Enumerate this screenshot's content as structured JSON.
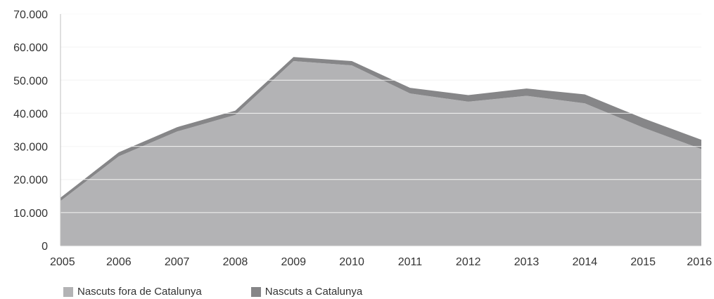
{
  "chart_data": {
    "type": "area",
    "stacked": true,
    "title": "",
    "xlabel": "",
    "ylabel": "",
    "x": [
      "2005",
      "2006",
      "2007",
      "2008",
      "2009",
      "2010",
      "2011",
      "2012",
      "2013",
      "2014",
      "2015",
      "2016"
    ],
    "ylim": [
      0,
      70000
    ],
    "yticks": [
      0,
      10000,
      20000,
      30000,
      40000,
      50000,
      60000,
      70000
    ],
    "ytick_labels": [
      "0",
      "10.000",
      "20.000",
      "30.000",
      "40.000",
      "50.000",
      "60.000",
      "70.000"
    ],
    "grid": true,
    "legend_position": "bottom-left",
    "series": [
      {
        "name": "Nascuts fora de Catalunya",
        "color": "#b3b3b5",
        "values": [
          13500,
          27000,
          34500,
          39500,
          55800,
          54500,
          46000,
          43500,
          45300,
          43000,
          35700,
          29200
        ]
      },
      {
        "name": "Nascuts a Catalunya",
        "color": "#868688",
        "values": [
          1000,
          1200,
          1300,
          1300,
          1200,
          1300,
          1700,
          2000,
          2200,
          2700,
          2800,
          2800
        ]
      }
    ]
  }
}
